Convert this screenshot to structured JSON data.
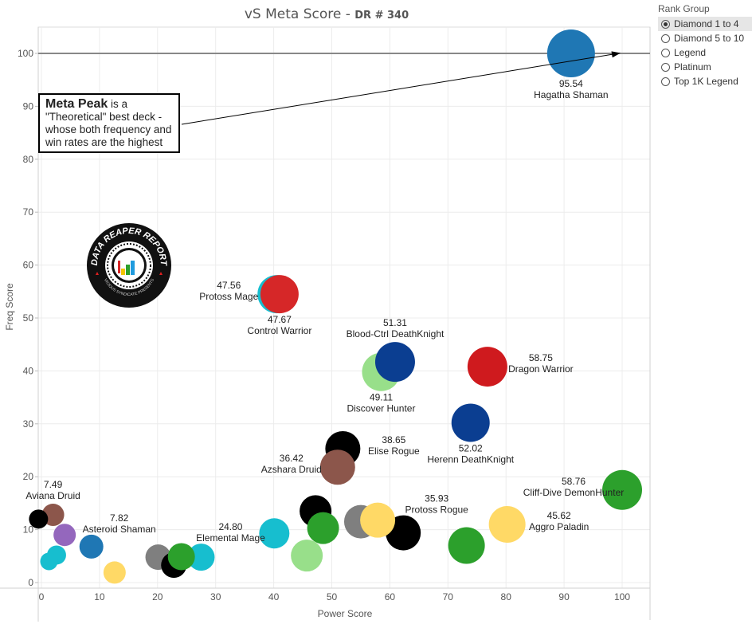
{
  "chart_data": {
    "type": "scatter",
    "title": "vS Meta Score",
    "subtitle": "DR # 340",
    "xlabel": "Power Score",
    "ylabel": "Freq Score",
    "xlim": [
      -0.5,
      105.5
    ],
    "ylim": [
      -1,
      105
    ],
    "xticks": [
      0,
      10,
      20,
      30,
      40,
      50,
      60,
      70,
      80,
      90,
      100
    ],
    "yticks": [
      0,
      10,
      20,
      30,
      40,
      50,
      60,
      70,
      80,
      90,
      100
    ],
    "grid": true,
    "reference_line": {
      "y": 100
    },
    "points": [
      {
        "x": 91.2,
        "y": 100.0,
        "label_value": "95.54",
        "label_name": "Hagatha Shaman",
        "color": "#1f77b4",
        "size": 1.5,
        "label_pos": "below"
      },
      {
        "x": 40.5,
        "y": 54.5,
        "label_value": "47.56",
        "label_name": "Protoss Mage",
        "color": "#17becf",
        "size": 1.2,
        "label_pos": "left"
      },
      {
        "x": 41.0,
        "y": 54.5,
        "label_value": "47.67",
        "label_name": "Control Warrior",
        "color": "#d62728",
        "size": 1.2,
        "label_pos": "below"
      },
      {
        "x": 58.5,
        "y": 39.8,
        "label_value": "49.11",
        "label_name": "Discover Hunter",
        "color": "#98df8a",
        "size": 1.2,
        "label_pos": "below"
      },
      {
        "x": 60.9,
        "y": 41.7,
        "label_value": "51.31",
        "label_name": "Blood-Ctrl DeathKnight",
        "color": "#0b3e91",
        "size": 1.25,
        "label_pos": "above"
      },
      {
        "x": 76.8,
        "y": 40.8,
        "label_value": "58.75",
        "label_name": "Dragon Warrior",
        "color": "#cf1a1e",
        "size": 1.25,
        "label_pos": "right"
      },
      {
        "x": 73.9,
        "y": 30.2,
        "label_value": "52.02",
        "label_name": "Herenn DeathKnight",
        "color": "#0b3e91",
        "size": 1.2,
        "label_pos": "below"
      },
      {
        "x": 51.9,
        "y": 25.3,
        "label_value": "38.65",
        "label_name": "Elise Rogue",
        "color": "#000000",
        "size": 1.1,
        "label_pos": "right"
      },
      {
        "x": 51.0,
        "y": 21.8,
        "label_value": "36.42",
        "label_name": "Azshara Druid",
        "color": "#8c564b",
        "size": 1.1,
        "label_pos": "left"
      },
      {
        "x": 100.0,
        "y": 17.5,
        "label_value": "58.76",
        "label_name": "Cliff-Dive DemonHunter",
        "color": "#2ca02c",
        "size": 1.25,
        "label_pos": "left"
      },
      {
        "x": 80.2,
        "y": 11.0,
        "label_value": "45.62",
        "label_name": "Aggro Paladin",
        "color": "#ffd966",
        "size": 1.15,
        "label_pos": "right"
      },
      {
        "x": 62.3,
        "y": 9.4,
        "label_value": "35.93",
        "label_name": "Protoss Rogue",
        "color": "#000000",
        "size": 1.1,
        "label_pos": "above-right"
      },
      {
        "x": 2.0,
        "y": 12.8,
        "label_value": "7.49",
        "label_name": "Aviana Druid",
        "color": "#8c564b",
        "size": 0.7,
        "label_pos": "above"
      },
      {
        "x": 8.6,
        "y": 6.8,
        "label_value": "7.82",
        "label_name": "Asteroid Shaman",
        "color": "#1f77b4",
        "size": 0.75,
        "label_pos": "above-right"
      },
      {
        "x": 27.5,
        "y": 4.8,
        "label_value": "24.80",
        "label_name": "Elemental Mage",
        "color": "#17becf",
        "size": 0.85,
        "label_pos": "above-right"
      },
      {
        "x": -0.5,
        "y": 12.0,
        "color": "#000000",
        "size": 0.6
      },
      {
        "x": 4.0,
        "y": 9.0,
        "color": "#9467bd",
        "size": 0.7
      },
      {
        "x": 2.6,
        "y": 5.2,
        "color": "#17becf",
        "size": 0.6
      },
      {
        "x": 1.3,
        "y": 4.0,
        "color": "#17becf",
        "size": 0.55
      },
      {
        "x": 12.6,
        "y": 1.9,
        "color": "#ffd966",
        "size": 0.7
      },
      {
        "x": 20.1,
        "y": 4.8,
        "color": "#7f7f7f",
        "size": 0.8
      },
      {
        "x": 22.8,
        "y": 3.3,
        "color": "#000000",
        "size": 0.8
      },
      {
        "x": 24.1,
        "y": 4.9,
        "color": "#2ca02c",
        "size": 0.85
      },
      {
        "x": 40.1,
        "y": 9.3,
        "color": "#17becf",
        "size": 0.95
      },
      {
        "x": 47.2,
        "y": 13.5,
        "color": "#000000",
        "size": 1.0
      },
      {
        "x": 48.5,
        "y": 10.3,
        "color": "#2ca02c",
        "size": 1.0
      },
      {
        "x": 45.7,
        "y": 5.1,
        "color": "#98df8a",
        "size": 1.0
      },
      {
        "x": 55.0,
        "y": 11.5,
        "color": "#7f7f7f",
        "size": 1.05
      },
      {
        "x": 57.9,
        "y": 11.8,
        "color": "#ffd966",
        "size": 1.1
      },
      {
        "x": 73.2,
        "y": 7.0,
        "color": "#2ca02c",
        "size": 1.15
      }
    ]
  },
  "annotation": {
    "bold": "Meta Peak",
    "text_line1": " is a",
    "text_line2": "\"Theoretical\" best deck -",
    "text_line3": "whose both frequency and",
    "text_line4": "win rates are the highest"
  },
  "logo": {
    "top_text": "DATA REAPER REPORT",
    "bottom_text": "VICIOUS SYNDICATE PRESENTS"
  },
  "legend": {
    "title": "Rank Group",
    "options": [
      {
        "label": "Diamond 1 to 4",
        "selected": true
      },
      {
        "label": "Diamond 5 to 10",
        "selected": false
      },
      {
        "label": "Legend",
        "selected": false
      },
      {
        "label": "Platinum",
        "selected": false
      },
      {
        "label": "Top 1K Legend",
        "selected": false
      }
    ]
  }
}
